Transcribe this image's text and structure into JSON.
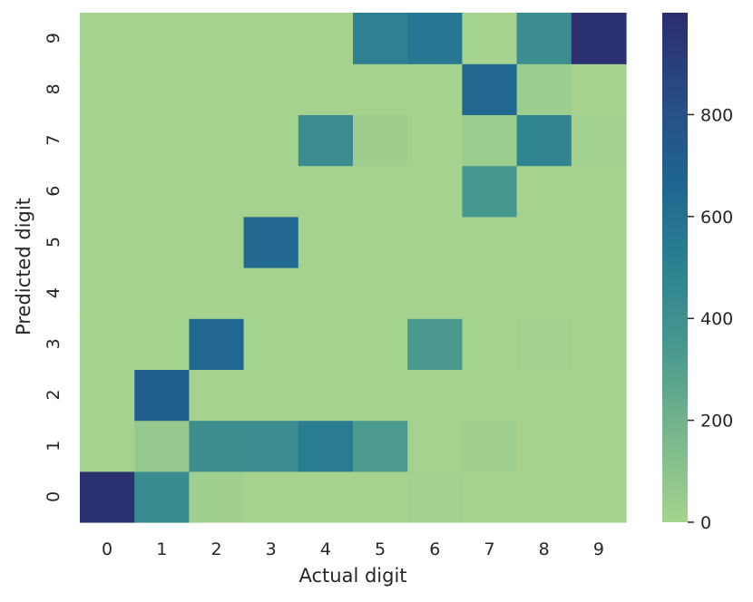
{
  "chart_data": {
    "type": "heatmap",
    "title": "",
    "xlabel": "Actual digit",
    "ylabel": "Predicted digit",
    "x_categories": [
      "0",
      "1",
      "2",
      "3",
      "4",
      "5",
      "6",
      "7",
      "8",
      "9"
    ],
    "y_categories": [
      "0",
      "1",
      "2",
      "3",
      "4",
      "5",
      "6",
      "7",
      "8",
      "9"
    ],
    "matrix_rows_by_predicted": [
      [
        980,
        430,
        20,
        0,
        0,
        0,
        10,
        0,
        0,
        0
      ],
      [
        0,
        60,
        410,
        420,
        530,
        330,
        0,
        20,
        0,
        0
      ],
      [
        0,
        700,
        0,
        0,
        0,
        0,
        0,
        0,
        0,
        0
      ],
      [
        0,
        0,
        650,
        5,
        0,
        0,
        340,
        0,
        10,
        0
      ],
      [
        0,
        0,
        0,
        0,
        0,
        0,
        0,
        0,
        0,
        0
      ],
      [
        0,
        0,
        0,
        640,
        0,
        0,
        0,
        0,
        0,
        0
      ],
      [
        0,
        0,
        0,
        0,
        0,
        0,
        0,
        360,
        0,
        0
      ],
      [
        0,
        0,
        0,
        0,
        420,
        30,
        0,
        40,
        480,
        10
      ],
      [
        0,
        0,
        0,
        0,
        0,
        0,
        0,
        650,
        40,
        0
      ],
      [
        0,
        0,
        0,
        0,
        0,
        500,
        560,
        0,
        420,
        980
      ]
    ],
    "colorbar": {
      "min": 0,
      "max": 1000,
      "ticks": [
        0,
        200,
        400,
        600,
        800
      ],
      "colormap": "crest",
      "color_stops": [
        "#a5d38f",
        "#7ab88c",
        "#4a9a8e",
        "#2d8190",
        "#1f6590",
        "#284b84",
        "#2b2d6d"
      ]
    },
    "grid": false
  }
}
